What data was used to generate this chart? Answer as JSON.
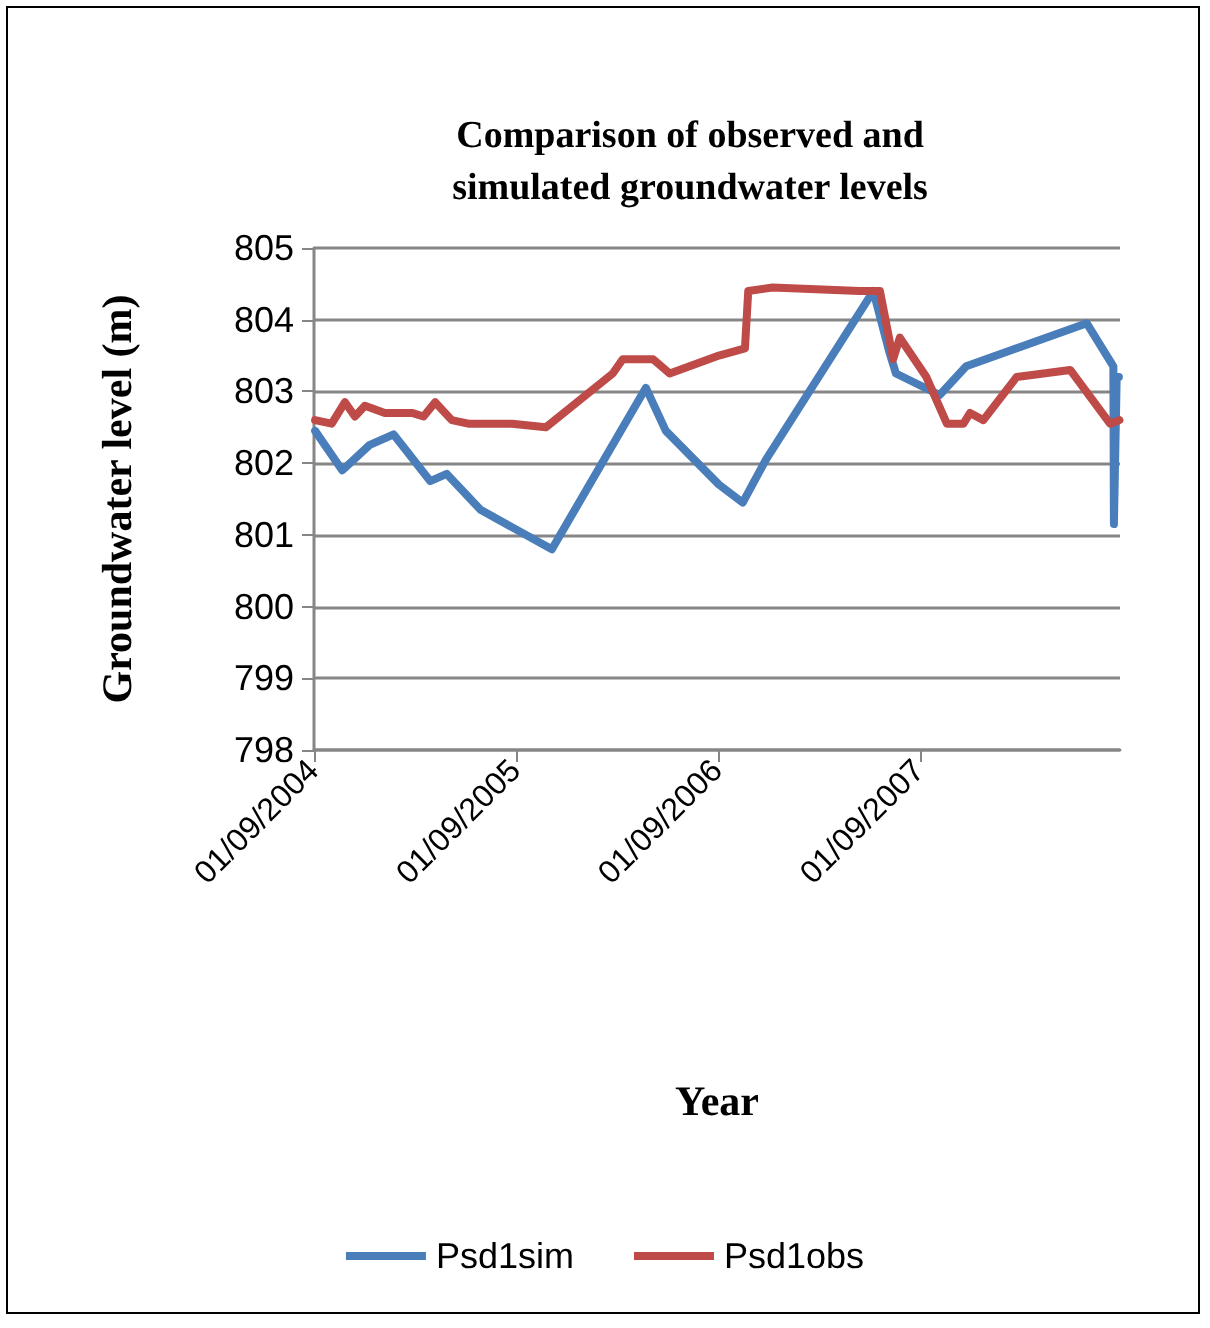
{
  "chart_data": {
    "type": "line",
    "title": "Comparison of observed and\nsimulated groundwater levels",
    "xlabel": "Year",
    "ylabel": "Groundwater level (m)",
    "xlim": [
      "2004-09-01",
      "2008-08-28"
    ],
    "xticks": [
      {
        "value": "2004-09-01",
        "label": "01/09/2004"
      },
      {
        "value": "2005-09-01",
        "label": "01/09/2005"
      },
      {
        "value": "2006-09-01",
        "label": "01/09/2006"
      },
      {
        "value": "2007-09-01",
        "label": "01/09/2007"
      }
    ],
    "ylim": [
      798,
      805
    ],
    "yticks": [
      798,
      799,
      800,
      801,
      802,
      803,
      804,
      805
    ],
    "grid": "y",
    "legend": "bottom",
    "marker": "none",
    "line_style": "solid",
    "series": [
      {
        "name": "Psd1sim",
        "color": "#4a7ebb",
        "x": [
          "2004-09-03",
          "2004-10-22",
          "2004-12-10",
          "2005-01-23",
          "2005-03-30",
          "2005-04-29",
          "2005-06-29",
          "2005-11-05",
          "2006-04-24",
          "2006-05-30",
          "2006-09-03",
          "2006-10-16",
          "2006-11-27",
          "2007-06-09",
          "2007-07-08",
          "2007-07-20",
          "2007-10-07",
          "2007-11-24",
          "2008-06-29",
          "2008-08-16",
          "2008-08-17",
          "2008-08-22",
          "2008-08-26"
        ],
        "values": [
          802.45,
          801.9,
          802.25,
          802.4,
          801.75,
          801.85,
          801.35,
          800.8,
          803.05,
          802.45,
          801.7,
          801.45,
          802.05,
          804.4,
          803.55,
          803.25,
          802.95,
          803.35,
          803.95,
          803.35,
          801.15,
          803.2,
          803.2
        ]
      },
      {
        "name": "Psd1obs",
        "color": "#be4b48",
        "x": [
          "2004-09-03",
          "2004-10-03",
          "2004-10-27",
          "2004-11-14",
          "2004-12-02",
          "2005-01-07",
          "2005-02-25",
          "2005-03-18",
          "2005-04-08",
          "2005-05-08",
          "2005-06-07",
          "2005-08-25",
          "2005-10-25",
          "2006-02-23",
          "2006-03-13",
          "2006-05-07",
          "2006-06-06",
          "2006-09-03",
          "2006-10-20",
          "2006-10-26",
          "2006-12-09",
          "2007-05-15",
          "2007-06-21",
          "2007-07-15",
          "2007-07-27",
          "2007-09-13",
          "2007-10-20",
          "2007-11-19",
          "2007-12-01",
          "2007-12-25",
          "2008-02-23",
          "2008-05-30",
          "2008-08-10",
          "2008-08-27"
        ],
        "values": [
          802.6,
          802.55,
          802.85,
          802.65,
          802.8,
          802.7,
          802.7,
          802.65,
          802.85,
          802.6,
          802.55,
          802.55,
          802.5,
          803.25,
          803.45,
          803.45,
          803.25,
          803.5,
          803.6,
          804.4,
          804.45,
          804.4,
          804.4,
          803.45,
          803.75,
          803.2,
          802.55,
          802.55,
          802.7,
          802.6,
          803.2,
          803.3,
          802.55,
          802.6
        ]
      }
    ]
  }
}
